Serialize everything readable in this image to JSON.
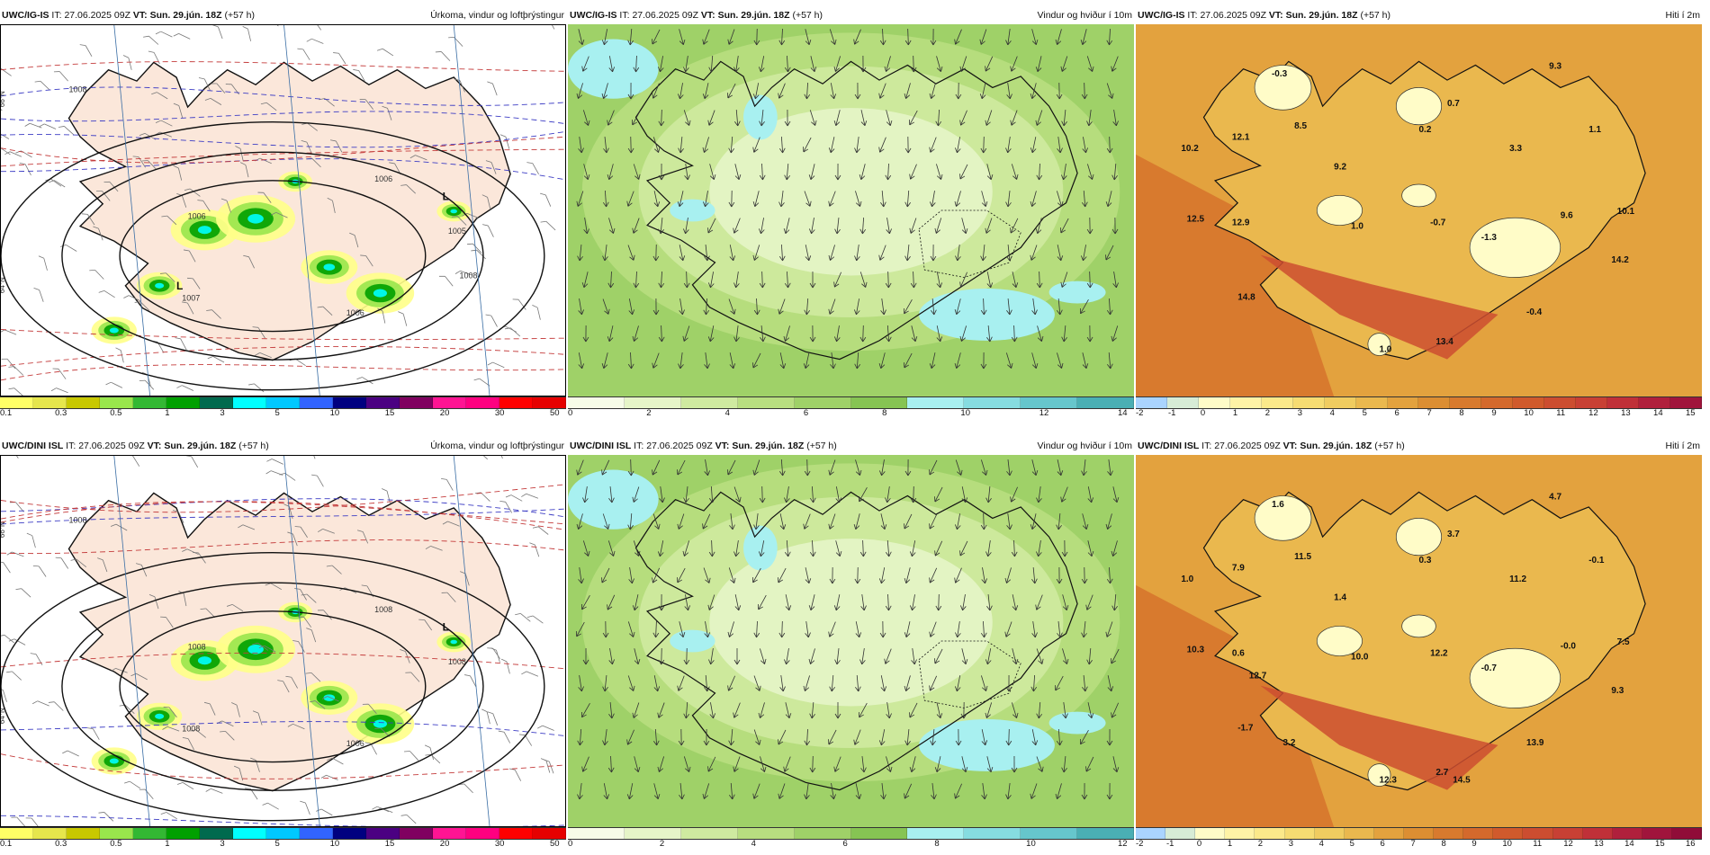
{
  "panels": [
    {
      "row": 0,
      "col": 0,
      "kind": "precip",
      "model": "UWC/IG-IS",
      "it_label": "IT:",
      "it_value": "27.06.2025 09Z",
      "vt_label": "VT:",
      "vt_value": "Sun. 29.jún. 18Z",
      "lead": "(+57 h)",
      "title": "Úrkoma, vindur og loftþrýstingur",
      "colorbar": [
        "#ffff66",
        "#e6e64c",
        "#c8c800",
        "#99e64c",
        "#33b833",
        "#00a000",
        "#006a4e",
        "#00ffff",
        "#00c8ff",
        "#3264ff",
        "#000080",
        "#4b0082",
        "#800060",
        "#ff1493",
        "#ff0080",
        "#ff0000",
        "#e60000"
      ],
      "ticks": [
        "0.1",
        "0.3",
        "0.5",
        "1",
        "3",
        "5",
        "10",
        "15",
        "20",
        "30",
        "50"
      ],
      "lat_labels": [
        "66°N",
        "64°N"
      ],
      "isobar_labels": [
        "1008",
        "1006",
        "1005",
        "1006",
        "1007",
        "1006",
        "1008"
      ],
      "pressure_centers": [
        "L",
        "L"
      ]
    },
    {
      "row": 0,
      "col": 1,
      "kind": "wind",
      "model": "UWC/IG-IS",
      "it_label": "IT:",
      "it_value": "27.06.2025 09Z",
      "vt_label": "VT:",
      "vt_value": "Sun. 29.jún. 18Z",
      "lead": "(+57 h)",
      "title": "Vindur og hviður í 10m",
      "colorbar": [
        "#f7fce8",
        "#e6f5c8",
        "#cfeaa0",
        "#b8de80",
        "#9fd168",
        "#86c453",
        "#a8f0f0",
        "#86dce0",
        "#66c6cc",
        "#4aafb4"
      ],
      "ticks": [
        "0",
        "2",
        "4",
        "6",
        "8",
        "10",
        "12",
        "14"
      ]
    },
    {
      "row": 0,
      "col": 2,
      "kind": "temp",
      "model": "UWC/IG-IS",
      "it_label": "IT:",
      "it_value": "27.06.2025 09Z",
      "vt_label": "VT:",
      "vt_value": "Sun. 29.jún. 18Z",
      "lead": "(+57 h)",
      "title": "Hiti í 2m",
      "colorbar": [
        "#aad4ff",
        "#d7ecd6",
        "#fffcc8",
        "#fff3a6",
        "#fbe98a",
        "#f6dc72",
        "#f0cc60",
        "#eab84e",
        "#e3a23e",
        "#dc8e32",
        "#d87a2e",
        "#d4692c",
        "#d05a2c",
        "#cc4d30",
        "#c84034",
        "#c03038",
        "#b0203c",
        "#a0143c"
      ],
      "ticks": [
        "-2",
        "-1",
        "0",
        "1",
        "2",
        "3",
        "4",
        "5",
        "6",
        "7",
        "8",
        "9",
        "10",
        "11",
        "12",
        "13",
        "14",
        "15"
      ],
      "temp_labels": [
        "-0.3",
        "9.3",
        "10.2",
        "12.1",
        "8.5",
        "0.7",
        "0.2",
        "1.1",
        "3.3",
        "9.2",
        "10.1",
        "12.5",
        "12.9",
        "1.0",
        "-0.7",
        "9.6",
        "-1.3",
        "14.2",
        "14.8",
        "-0.4",
        "1.0",
        "13.4"
      ]
    },
    {
      "row": 1,
      "col": 0,
      "kind": "precip",
      "model": "UWC/DINI ISL",
      "it_label": "IT:",
      "it_value": "27.06.2025 09Z",
      "vt_label": "VT:",
      "vt_value": "Sun. 29.jún. 18Z",
      "lead": "(+57 h)",
      "title": "Úrkoma, vindur og loftþrýstingur",
      "colorbar": [
        "#ffff66",
        "#e6e64c",
        "#c8c800",
        "#99e64c",
        "#33b833",
        "#00a000",
        "#006a4e",
        "#00ffff",
        "#00c8ff",
        "#3264ff",
        "#000080",
        "#4b0082",
        "#800060",
        "#ff1493",
        "#ff0080",
        "#ff0000",
        "#e60000"
      ],
      "ticks": [
        "0.1",
        "0.3",
        "0.5",
        "1",
        "3",
        "5",
        "10",
        "15",
        "20",
        "30",
        "50"
      ],
      "lat_labels": [
        "66°N",
        "64°N"
      ],
      "isobar_labels": [
        "1008",
        "1008",
        "1008",
        "1008",
        "1008",
        "1006"
      ],
      "pressure_centers": [
        "L"
      ]
    },
    {
      "row": 1,
      "col": 1,
      "kind": "wind",
      "model": "UWC/DINI ISL",
      "it_label": "IT:",
      "it_value": "27.06.2025 09Z",
      "vt_label": "VT:",
      "vt_value": "Sun. 29.jún. 18Z",
      "lead": "(+57 h)",
      "title": "Vindur og hviður í 10m",
      "colorbar": [
        "#f7fce8",
        "#e6f5c8",
        "#cfeaa0",
        "#b8de80",
        "#9fd168",
        "#86c453",
        "#a8f0f0",
        "#86dce0",
        "#66c6cc",
        "#4aafb4"
      ],
      "ticks": [
        "0",
        "2",
        "4",
        "6",
        "8",
        "10",
        "12"
      ]
    },
    {
      "row": 1,
      "col": 2,
      "kind": "temp",
      "model": "UWC/DINI ISL",
      "it_label": "IT:",
      "it_value": "27.06.2025 09Z",
      "vt_label": "VT:",
      "vt_value": "Sun. 29.jún. 18Z",
      "lead": "(+57 h)",
      "title": "Hiti í 2m",
      "colorbar": [
        "#aad4ff",
        "#d7ecd6",
        "#fffcc8",
        "#fff3a6",
        "#fbe98a",
        "#f6dc72",
        "#f0cc60",
        "#eab84e",
        "#e3a23e",
        "#dc8e32",
        "#d87a2e",
        "#d4692c",
        "#d05a2c",
        "#cc4d30",
        "#c84034",
        "#c03038",
        "#b0203c",
        "#a0143c",
        "#900c38"
      ],
      "ticks": [
        "-2",
        "-1",
        "0",
        "1",
        "2",
        "3",
        "4",
        "5",
        "6",
        "7",
        "8",
        "9",
        "10",
        "11",
        "12",
        "13",
        "14",
        "15",
        "16"
      ],
      "temp_labels": [
        "1.6",
        "4.7",
        "1.0",
        "7.9",
        "11.5",
        "3.7",
        "0.3",
        "-0.1",
        "11.2",
        "1.4",
        "7.5",
        "10.3",
        "0.6",
        "10.0",
        "12.2",
        "-0.0",
        "-0.7",
        "9.3",
        "-1.7",
        "13.9",
        "12.3",
        "2.7",
        "12.7",
        "3.2",
        "14.5"
      ]
    }
  ]
}
